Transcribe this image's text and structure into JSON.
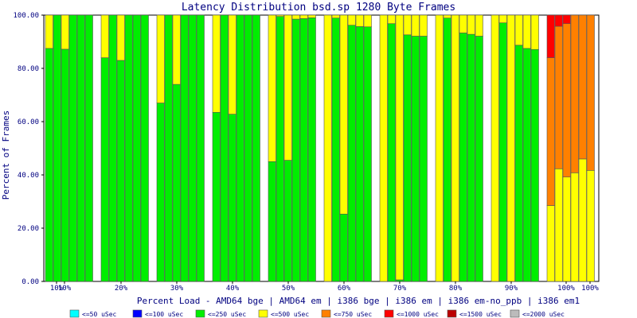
{
  "chart_data": {
    "type": "bar",
    "title": "Latency Distribution bsd.sp 1280 Byte Frames",
    "xlabel": "Percent Load - AMD64 bge | AMD64 em | i386 bge | i386 em | i386 em-no_ppb | i386 em1",
    "ylabel": "Percent of Frames",
    "ylim": [
      0,
      100
    ],
    "yticks": [
      "0.00",
      "20.00",
      "40.00",
      "60.00",
      "80.00",
      "100.00"
    ],
    "xtick_labels": [
      "10%",
      "10%",
      "20%",
      "30%",
      "40%",
      "50%",
      "60%",
      "70%",
      "80%",
      "90%",
      "100%",
      "100%"
    ],
    "grid": false,
    "legend_position": "bottom",
    "groups": [
      "10%",
      "20%",
      "30%",
      "40%",
      "50%",
      "60%",
      "70%",
      "80%",
      "90%",
      "100%"
    ],
    "subgroups": [
      "AMD64 bge",
      "AMD64 em",
      "i386 bge",
      "i386 em",
      "i386 em-no_ppb",
      "i386 em1"
    ],
    "series": [
      {
        "name": "<=50 uSec",
        "color": "#00ffff",
        "values": [
          [
            0,
            0,
            0,
            0,
            0,
            0
          ],
          [
            0,
            0,
            0,
            0,
            0,
            0
          ],
          [
            0,
            0,
            0,
            0,
            0,
            0
          ],
          [
            0,
            0,
            0,
            0,
            0,
            0
          ],
          [
            0,
            0,
            0,
            0,
            0,
            0
          ],
          [
            0,
            0,
            0,
            0,
            0,
            0
          ],
          [
            0,
            0,
            0,
            0,
            0,
            0
          ],
          [
            0,
            0,
            0,
            0,
            0,
            0
          ],
          [
            0,
            0,
            0,
            0,
            0,
            0
          ],
          [
            0,
            0,
            0,
            0,
            0,
            0
          ]
        ]
      },
      {
        "name": "<=100 uSec",
        "color": "#0000ff",
        "values": [
          [
            0,
            0,
            0,
            0,
            0,
            0
          ],
          [
            0,
            0,
            0,
            0,
            0,
            0
          ],
          [
            0,
            0,
            0,
            0,
            0,
            0
          ],
          [
            0,
            0,
            0,
            0,
            0,
            0
          ],
          [
            0,
            0,
            0,
            0,
            0,
            0
          ],
          [
            0,
            0,
            0,
            0,
            0,
            0
          ],
          [
            0,
            0,
            0,
            0,
            0,
            0
          ],
          [
            0,
            0,
            0,
            0,
            0,
            0
          ],
          [
            0,
            0,
            0,
            0,
            0,
            0
          ],
          [
            0,
            0,
            0,
            0,
            0,
            0
          ]
        ]
      },
      {
        "name": "<=250 uSec",
        "color": "#00ee00",
        "values": [
          [
            87.5,
            100,
            87.2,
            100,
            100,
            100
          ],
          [
            84,
            100,
            83,
            100,
            100,
            100
          ],
          [
            67,
            100,
            74,
            100,
            100,
            100
          ],
          [
            63.5,
            100,
            62.8,
            100,
            100,
            100
          ],
          [
            45,
            99.5,
            45.5,
            98.5,
            98.7,
            99
          ],
          [
            0,
            98.9,
            25.3,
            96.2,
            95.7,
            95.6
          ],
          [
            0,
            96.8,
            0.6,
            92.6,
            92.1,
            92.1
          ],
          [
            0,
            98.9,
            0,
            93.3,
            92.8,
            92.1
          ],
          [
            0,
            97.1,
            0,
            88.7,
            87.5,
            87.1
          ],
          [
            0,
            0,
            0,
            0,
            0,
            0
          ]
        ]
      },
      {
        "name": "<=500 uSec",
        "color": "#ffff00",
        "values": [
          [
            12.5,
            0,
            12.8,
            0,
            0,
            0
          ],
          [
            16,
            0,
            17,
            0,
            0,
            0
          ],
          [
            33,
            0,
            26,
            0,
            0,
            0
          ],
          [
            36.5,
            0,
            37.2,
            0,
            0,
            0
          ],
          [
            55,
            0.5,
            54.5,
            1.5,
            1.3,
            1
          ],
          [
            100,
            1.1,
            74.7,
            3.8,
            4.3,
            4.4
          ],
          [
            100,
            3.2,
            99.4,
            7.4,
            7.9,
            7.9
          ],
          [
            100,
            1.1,
            100,
            6.7,
            7.2,
            7.9
          ],
          [
            100,
            2.9,
            100,
            11.3,
            12.5,
            12.9
          ],
          [
            28.5,
            42.3,
            39.2,
            40.8,
            46,
            41.7
          ]
        ]
      },
      {
        "name": "<=750 uSec",
        "color": "#ff8000",
        "values": [
          [
            0,
            0,
            0,
            0,
            0,
            0
          ],
          [
            0,
            0,
            0,
            0,
            0,
            0
          ],
          [
            0,
            0,
            0,
            0,
            0,
            0
          ],
          [
            0,
            0,
            0,
            0,
            0,
            0
          ],
          [
            0,
            0,
            0,
            0,
            0,
            0
          ],
          [
            0,
            0,
            0,
            0,
            0,
            0
          ],
          [
            0,
            0,
            0,
            0,
            0,
            0
          ],
          [
            0,
            0,
            0,
            0,
            0,
            0
          ],
          [
            0,
            0,
            0,
            0,
            0,
            0
          ],
          [
            55.5,
            53.5,
            57.6,
            59.2,
            54,
            58.3
          ]
        ]
      },
      {
        "name": "<=1000 uSec",
        "color": "#ff0000",
        "values": [
          [
            0,
            0,
            0,
            0,
            0,
            0
          ],
          [
            0,
            0,
            0,
            0,
            0,
            0
          ],
          [
            0,
            0,
            0,
            0,
            0,
            0
          ],
          [
            0,
            0,
            0,
            0,
            0,
            0
          ],
          [
            0,
            0,
            0,
            0,
            0,
            0
          ],
          [
            0,
            0,
            0,
            0,
            0,
            0
          ],
          [
            0,
            0,
            0,
            0,
            0,
            0
          ],
          [
            0,
            0,
            0,
            0,
            0,
            0
          ],
          [
            0,
            0,
            0,
            0,
            0,
            0
          ],
          [
            16,
            4.2,
            3.2,
            0,
            0,
            0
          ]
        ]
      },
      {
        "name": "<=1500 uSec",
        "color": "#bb0000",
        "values": [
          [
            0,
            0,
            0,
            0,
            0,
            0
          ],
          [
            0,
            0,
            0,
            0,
            0,
            0
          ],
          [
            0,
            0,
            0,
            0,
            0,
            0
          ],
          [
            0,
            0,
            0,
            0,
            0,
            0
          ],
          [
            0,
            0,
            0,
            0,
            0,
            0
          ],
          [
            0,
            0,
            0,
            0,
            0,
            0
          ],
          [
            0,
            0,
            0,
            0,
            0,
            0
          ],
          [
            0,
            0,
            0,
            0,
            0,
            0
          ],
          [
            0,
            0,
            0,
            0,
            0,
            0
          ],
          [
            0,
            0,
            0,
            0,
            0,
            0
          ]
        ]
      },
      {
        "name": "<=2000 uSec",
        "color": "#bbbbbb",
        "values": [
          [
            0,
            0,
            0,
            0,
            0,
            0
          ],
          [
            0,
            0,
            0,
            0,
            0,
            0
          ],
          [
            0,
            0,
            0,
            0,
            0,
            0
          ],
          [
            0,
            0,
            0,
            0,
            0,
            0
          ],
          [
            0,
            0,
            0,
            0,
            0,
            0
          ],
          [
            0,
            0,
            0,
            0,
            0,
            0
          ],
          [
            0,
            0,
            0,
            0,
            0,
            0
          ],
          [
            0,
            0,
            0,
            0,
            0,
            0
          ],
          [
            0,
            0,
            0,
            0,
            0,
            0
          ],
          [
            0,
            0,
            0,
            0,
            0,
            0
          ]
        ]
      }
    ]
  }
}
